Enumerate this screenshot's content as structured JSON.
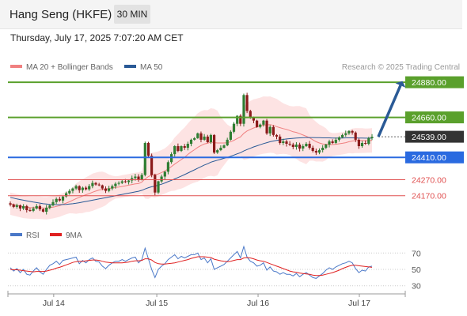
{
  "header": {
    "title": "Hang Seng (HKFE)",
    "timeframe": "30 MIN"
  },
  "timestamp": "Thursday, July 17, 2025 7:07:20 AM CET",
  "credit": "Research © 2025 Trading Central",
  "legend": {
    "ma20": {
      "label": "MA 20 + Bollinger Bands",
      "color": "#f08080"
    },
    "ma50": {
      "label": "MA 50",
      "color": "#2a5a96"
    },
    "rsi": {
      "label": "RSI",
      "color": "#4a78c8"
    },
    "rsi_ma": {
      "label": "9MA",
      "color": "#e02020"
    }
  },
  "colors": {
    "up": "#2e7d32",
    "down": "#8b1a1a",
    "resistance": "#5aa02c",
    "support": "#2a6ae0",
    "level": "#e05050",
    "pivot": "#333333",
    "arrow": "#2a5a96"
  },
  "chart_data": [
    {
      "type": "candlestick",
      "x_ticks": [
        "Jul 14",
        "Jul 15",
        "Jul 16",
        "Jul 17"
      ],
      "ylim": [
        24060,
        24920
      ],
      "levels": [
        {
          "value": 24880.0,
          "label": "24880.00",
          "style": "resistance"
        },
        {
          "value": 24660.0,
          "label": "24660.00",
          "style": "resistance"
        },
        {
          "value": 24539.0,
          "label": "24539.00",
          "style": "pivot"
        },
        {
          "value": 24410.0,
          "label": "24410.00",
          "style": "support"
        },
        {
          "value": 24270.0,
          "label": "24270.00",
          "style": "level"
        },
        {
          "value": 24170.0,
          "label": "24170.00",
          "style": "level"
        }
      ],
      "close_series": [
        24115,
        24100,
        24110,
        24090,
        24105,
        24080,
        24075,
        24090,
        24105,
        24085,
        24070,
        24095,
        24110,
        24130,
        24150,
        24140,
        24165,
        24185,
        24200,
        24215,
        24230,
        24205,
        24220,
        24210,
        24230,
        24250,
        24240,
        24235,
        24215,
        24200,
        24215,
        24230,
        24245,
        24250,
        24260,
        24255,
        24265,
        24280,
        24290,
        24270,
        24300,
        24500,
        24420,
        24300,
        24190,
        24260,
        24290,
        24320,
        24380,
        24430,
        24480,
        24450,
        24480,
        24470,
        24495,
        24520,
        24530,
        24560,
        24520,
        24540,
        24505,
        24550,
        24440,
        24455,
        24470,
        24485,
        24520,
        24570,
        24620,
        24670,
        24620,
        24800,
        24700,
        24660,
        24640,
        24600,
        24615,
        24640,
        24560,
        24600,
        24550,
        24540,
        24500,
        24510,
        24495,
        24490,
        24475,
        24490,
        24465,
        24480,
        24495,
        24470,
        24450,
        24440,
        24455,
        24470,
        24490,
        24510,
        24500,
        24520,
        24535,
        24550,
        24560,
        24575,
        24565,
        24520,
        24480,
        24500,
        24495,
        24530,
        24539
      ],
      "arrow": {
        "from": 24539,
        "to": 24880
      },
      "ma20_series": [
        24120,
        24115,
        24110,
        24105,
        24100,
        24098,
        24096,
        24095,
        24096,
        24095,
        24093,
        24092,
        24095,
        24098,
        24103,
        24108,
        24116,
        24124,
        24132,
        24142,
        24152,
        24160,
        24168,
        24176,
        24183,
        24192,
        24199,
        24206,
        24210,
        24212,
        24215,
        24218,
        24222,
        24224,
        24228,
        24232,
        24236,
        24240,
        24244,
        24246,
        24255,
        24275,
        24290,
        24300,
        24300,
        24306,
        24315,
        24325,
        24338,
        24352,
        24368,
        24382,
        24396,
        24410,
        24428,
        24444,
        24458,
        24472,
        24484,
        24494,
        24498,
        24506,
        24502,
        24500,
        24500,
        24500,
        24502,
        24508,
        24516,
        24528,
        24538,
        24560,
        24575,
        24585,
        24594,
        24600,
        24606,
        24612,
        24613,
        24615,
        24610,
        24602,
        24596,
        24590,
        24585,
        24578,
        24570,
        24566,
        24558,
        24550,
        24542,
        24532,
        24520,
        24508,
        24500,
        24494,
        24492,
        24490,
        24490,
        24492,
        24495,
        24498,
        24502,
        24508,
        24512,
        24515,
        24515,
        24515,
        24514,
        24515,
        24516
      ],
      "ma50_series": [
        24160,
        24155,
        24150,
        24146,
        24142,
        24138,
        24134,
        24130,
        24127,
        24124,
        24120,
        24118,
        24116,
        24115,
        24114,
        24114,
        24115,
        24116,
        24118,
        24120,
        24123,
        24126,
        24130,
        24134,
        24138,
        24142,
        24146,
        24150,
        24154,
        24158,
        24162,
        24166,
        24170,
        24174,
        24178,
        24182,
        24186,
        24190,
        24194,
        24198,
        24204,
        24212,
        24220,
        24226,
        24230,
        24236,
        24242,
        24250,
        24258,
        24266,
        24275,
        24284,
        24293,
        24302,
        24312,
        24322,
        24332,
        24342,
        24352,
        24362,
        24370,
        24380,
        24386,
        24392,
        24398,
        24404,
        24410,
        24417,
        24424,
        24432,
        24439,
        24450,
        24459,
        24467,
        24475,
        24482,
        24489,
        24496,
        24502,
        24508,
        24512,
        24516,
        24519,
        24522,
        24525,
        24527,
        24529,
        24531,
        24532,
        24533,
        24534,
        24534,
        24534,
        24533,
        24533,
        24532,
        24532,
        24532,
        24531,
        24531,
        24531,
        24531,
        24532,
        24532,
        24532,
        24532,
        24531,
        24531,
        24530,
        24530,
        24530
      ]
    },
    {
      "type": "line",
      "name": "rsi_panel",
      "ylim": [
        20,
        80
      ],
      "y_ticks": [
        "70",
        "50",
        "30"
      ],
      "rsi": [
        52,
        48,
        51,
        46,
        50,
        44,
        43,
        48,
        52,
        47,
        44,
        50,
        55,
        57,
        60,
        56,
        61,
        62,
        63,
        64,
        65,
        57,
        61,
        58,
        62,
        64,
        60,
        59,
        54,
        51,
        55,
        58,
        60,
        60,
        62,
        60,
        62,
        64,
        65,
        58,
        62,
        76,
        63,
        50,
        40,
        50,
        54,
        57,
        62,
        65,
        68,
        63,
        66,
        64,
        66,
        68,
        68,
        70,
        62,
        64,
        58,
        63,
        50,
        52,
        54,
        56,
        60,
        64,
        68,
        72,
        64,
        78,
        65,
        60,
        58,
        54,
        55,
        58,
        49,
        53,
        48,
        47,
        44,
        46,
        44,
        44,
        42,
        45,
        41,
        44,
        46,
        43,
        40,
        39,
        42,
        45,
        49,
        52,
        50,
        53,
        55,
        57,
        58,
        60,
        58,
        51,
        46,
        49,
        48,
        53,
        54
      ],
      "rsi_ma": [
        50,
        49.5,
        49.5,
        49,
        48.5,
        48,
        47.5,
        47,
        47.5,
        47.5,
        47.5,
        48,
        49,
        50,
        51.5,
        52.5,
        54,
        55.5,
        57,
        58.5,
        59.5,
        60,
        60,
        60.5,
        61,
        61.5,
        61.5,
        61,
        60,
        59,
        58.5,
        58,
        58,
        58,
        58,
        58.5,
        59,
        60,
        60.5,
        60.5,
        61,
        63,
        63,
        61.5,
        58.5,
        57,
        56.5,
        56.5,
        57,
        57.5,
        58,
        59,
        60,
        61,
        62,
        63.5,
        64.5,
        65.5,
        65.5,
        65.5,
        65,
        64.5,
        62.5,
        61.5,
        60.5,
        60,
        59.5,
        60,
        61,
        62,
        62,
        64,
        64.5,
        64,
        63,
        61.5,
        60.5,
        60,
        58.5,
        57,
        55.5,
        54,
        52.5,
        51,
        49.5,
        48,
        47,
        46.5,
        45.5,
        45,
        44.5,
        44,
        43,
        42.5,
        42.5,
        43,
        44,
        45,
        46,
        47.5,
        49,
        51,
        52.5,
        54,
        55,
        55,
        54.5,
        54,
        53.5,
        53,
        52.5
      ]
    }
  ]
}
